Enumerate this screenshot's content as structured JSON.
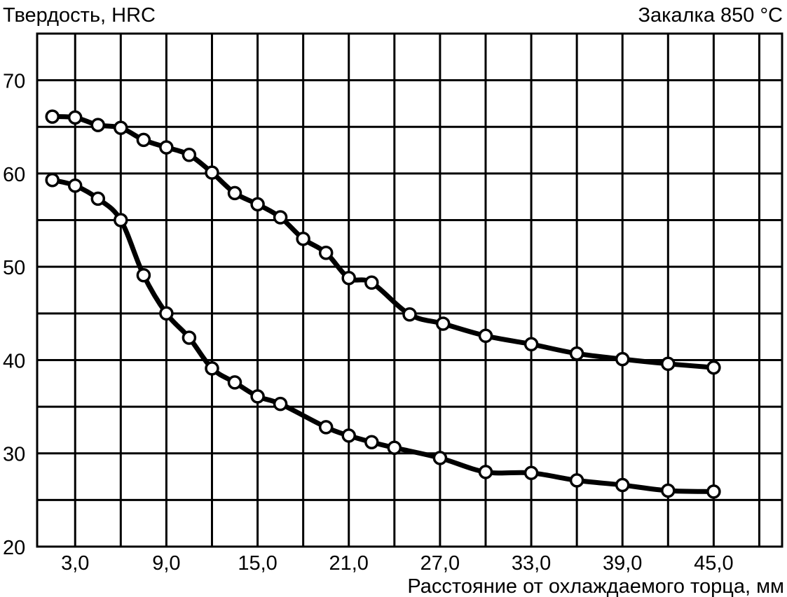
{
  "chart_data": {
    "type": "line",
    "title": "",
    "ylabel": "Твердость, HRC",
    "annotation": "Закалка 850 °C",
    "xlabel": "Расстояние от охлаждаемого торца, мм",
    "xlim": [
      0.5,
      49.5
    ],
    "ylim": [
      20,
      75
    ],
    "x_ticks": [
      3,
      9,
      15,
      21,
      27,
      33,
      39,
      45
    ],
    "x_tick_labels": [
      "3,0",
      "9,0",
      "15,0",
      "21,0",
      "27,0",
      "33,0",
      "39,0",
      "45,0"
    ],
    "y_ticks": [
      20,
      30,
      40,
      50,
      60,
      70
    ],
    "y_tick_labels": [
      "20",
      "30",
      "40",
      "50",
      "60",
      "70"
    ],
    "grid": true,
    "legend": "none",
    "line_color": "#000000",
    "marker": "open-circle",
    "series": [
      {
        "x": [
          1.5,
          3.0,
          4.5,
          6.0,
          7.5,
          9.0,
          10.5,
          12.0,
          13.5,
          15.0,
          16.5,
          18.0,
          19.5,
          21.0,
          22.5,
          25.0,
          27.2,
          30.0,
          33.0,
          36.0,
          39.0,
          42.0,
          45.0
        ],
        "y": [
          66.1,
          66.0,
          65.2,
          64.9,
          63.6,
          62.8,
          62.0,
          60.1,
          57.9,
          56.7,
          55.3,
          53.0,
          51.5,
          48.8,
          48.3,
          44.9,
          43.9,
          42.6,
          41.7,
          40.7,
          40.1,
          39.6,
          39.2
        ]
      },
      {
        "x": [
          1.5,
          3.0,
          4.5,
          6.0,
          7.5,
          9.0,
          10.5,
          12.0,
          13.5,
          15.0,
          16.5,
          19.5,
          21.0,
          22.5,
          24.0,
          27.0,
          30.0,
          33.0,
          36.0,
          39.0,
          42.0,
          45.0
        ],
        "y": [
          59.3,
          58.7,
          57.3,
          55.0,
          49.1,
          45.0,
          42.4,
          39.1,
          37.6,
          36.1,
          35.3,
          32.8,
          31.9,
          31.2,
          30.6,
          29.5,
          28.0,
          27.9,
          27.1,
          26.6,
          26.0,
          25.9
        ]
      }
    ]
  }
}
